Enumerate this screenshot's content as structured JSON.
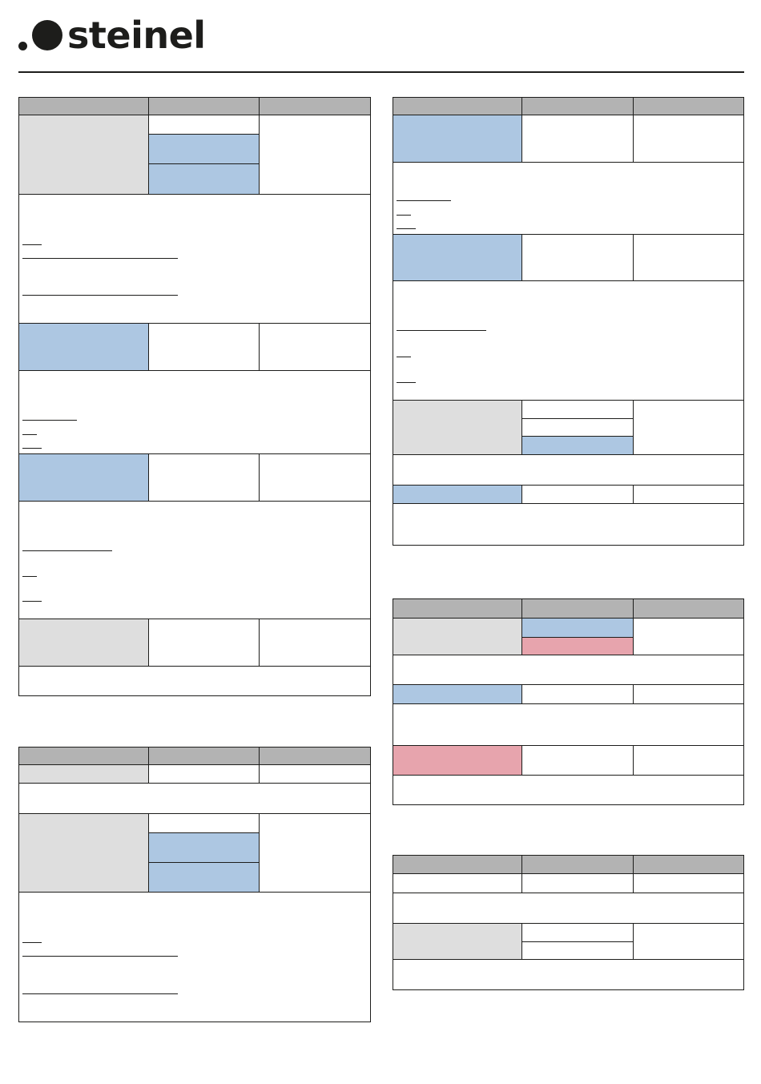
{
  "brand": {
    "name": "steinel"
  },
  "colors": {
    "header": "#b3b3b3",
    "grey": "#dedede",
    "blue": "#adc7e2",
    "pink": "#e7a4ad",
    "line": "#1d1d1b"
  },
  "tables": []
}
